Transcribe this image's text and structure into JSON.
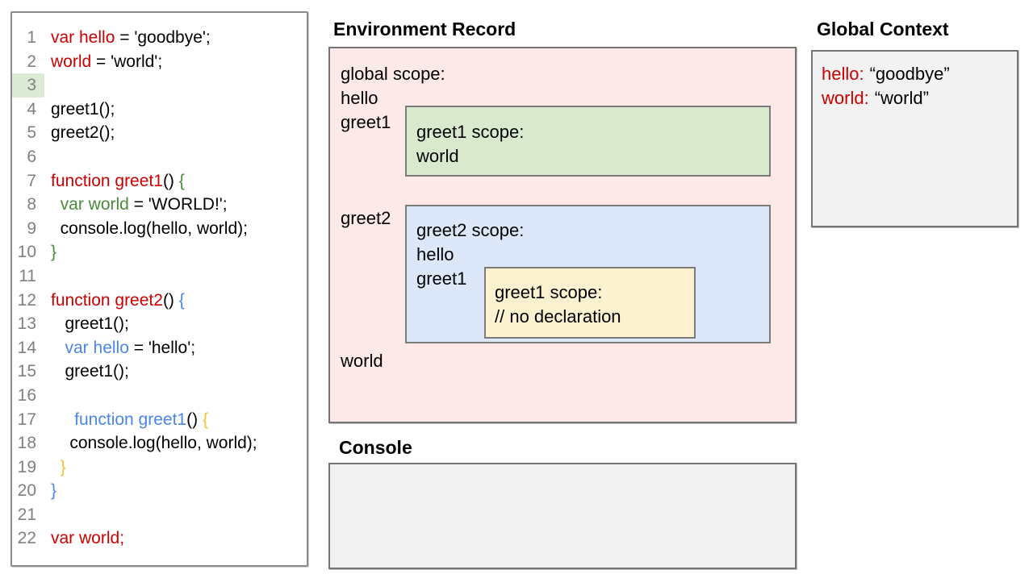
{
  "colors": {
    "syntax_red": "#cc0000",
    "syntax_green": "#4a8b3b",
    "syntax_blue": "#4a86e8",
    "syntax_yellow": "#f1c232",
    "line_number_gray": "#808080",
    "line_highlight_green": "#dcebd5",
    "global_scope_fill": "#fce9e8",
    "greet1_scope_fill": "#d8e9cd",
    "greet2_scope_fill": "#dce8f9",
    "inner_scope_fill": "#fdf2d0",
    "panel_gray_fill": "#f2f2f2"
  },
  "code_panel": {
    "lines": [
      {
        "n": "1",
        "segs": [
          {
            "t": "var hello",
            "c": "red"
          },
          {
            "t": " = 'goodbye';",
            "c": "black"
          }
        ]
      },
      {
        "n": "2",
        "segs": [
          {
            "t": "world",
            "c": "red"
          },
          {
            "t": " = 'world';",
            "c": "black"
          }
        ]
      },
      {
        "n": "3",
        "hl": true,
        "segs": []
      },
      {
        "n": "4",
        "segs": [
          {
            "t": "greet1();",
            "c": "black"
          }
        ]
      },
      {
        "n": "5",
        "segs": [
          {
            "t": "greet2();",
            "c": "black"
          }
        ]
      },
      {
        "n": "6",
        "segs": []
      },
      {
        "n": "7",
        "segs": [
          {
            "t": "function greet1",
            "c": "red"
          },
          {
            "t": "() ",
            "c": "black"
          },
          {
            "t": "{",
            "c": "green"
          }
        ]
      },
      {
        "n": "8",
        "segs": [
          {
            "t": "  var world",
            "c": "green"
          },
          {
            "t": " = 'WORLD!';",
            "c": "black"
          }
        ]
      },
      {
        "n": "9",
        "segs": [
          {
            "t": "  console.log(hello, world);",
            "c": "black"
          }
        ]
      },
      {
        "n": "10",
        "segs": [
          {
            "t": "}",
            "c": "green"
          }
        ]
      },
      {
        "n": "11",
        "segs": []
      },
      {
        "n": "12",
        "segs": [
          {
            "t": "function greet2",
            "c": "red"
          },
          {
            "t": "() ",
            "c": "black"
          },
          {
            "t": "{",
            "c": "blue"
          }
        ]
      },
      {
        "n": "13",
        "segs": [
          {
            "t": "   greet1();",
            "c": "black"
          }
        ]
      },
      {
        "n": "14",
        "segs": [
          {
            "t": "   var hello",
            "c": "blue"
          },
          {
            "t": " = 'hello';",
            "c": "black"
          }
        ]
      },
      {
        "n": "15",
        "segs": [
          {
            "t": "   greet1();",
            "c": "black"
          }
        ]
      },
      {
        "n": "16",
        "segs": []
      },
      {
        "n": "17",
        "segs": [
          {
            "t": "     function greet1",
            "c": "blue"
          },
          {
            "t": "() ",
            "c": "black"
          },
          {
            "t": "{",
            "c": "yellow"
          }
        ]
      },
      {
        "n": "18",
        "segs": [
          {
            "t": "    console.log(hello, world);",
            "c": "black"
          }
        ]
      },
      {
        "n": "19",
        "segs": [
          {
            "t": "  }",
            "c": "yellow"
          }
        ]
      },
      {
        "n": "20",
        "segs": [
          {
            "t": "}",
            "c": "blue"
          }
        ]
      },
      {
        "n": "21",
        "segs": []
      },
      {
        "n": "22",
        "segs": [
          {
            "t": "var world;",
            "c": "red"
          }
        ]
      }
    ]
  },
  "environment_record": {
    "title": "Environment Record",
    "global_scope_label": "global scope:",
    "var_hello": "hello",
    "var_greet1": "greet1",
    "var_greet2": "greet2",
    "var_world": "world",
    "greet1_scope": {
      "title": "greet1 scope:",
      "var_world": "world"
    },
    "greet2_scope": {
      "title": "greet2 scope:",
      "var_hello": "hello",
      "var_greet1": "greet1",
      "inner_greet1_scope": {
        "title": "greet1 scope:",
        "comment": "// no declaration"
      }
    }
  },
  "console_panel": {
    "title": "Console"
  },
  "global_context": {
    "title": "Global Context",
    "entries": [
      {
        "name": "hello:",
        "value": "“goodbye”"
      },
      {
        "name": "world:",
        "value": "“world”"
      }
    ]
  }
}
